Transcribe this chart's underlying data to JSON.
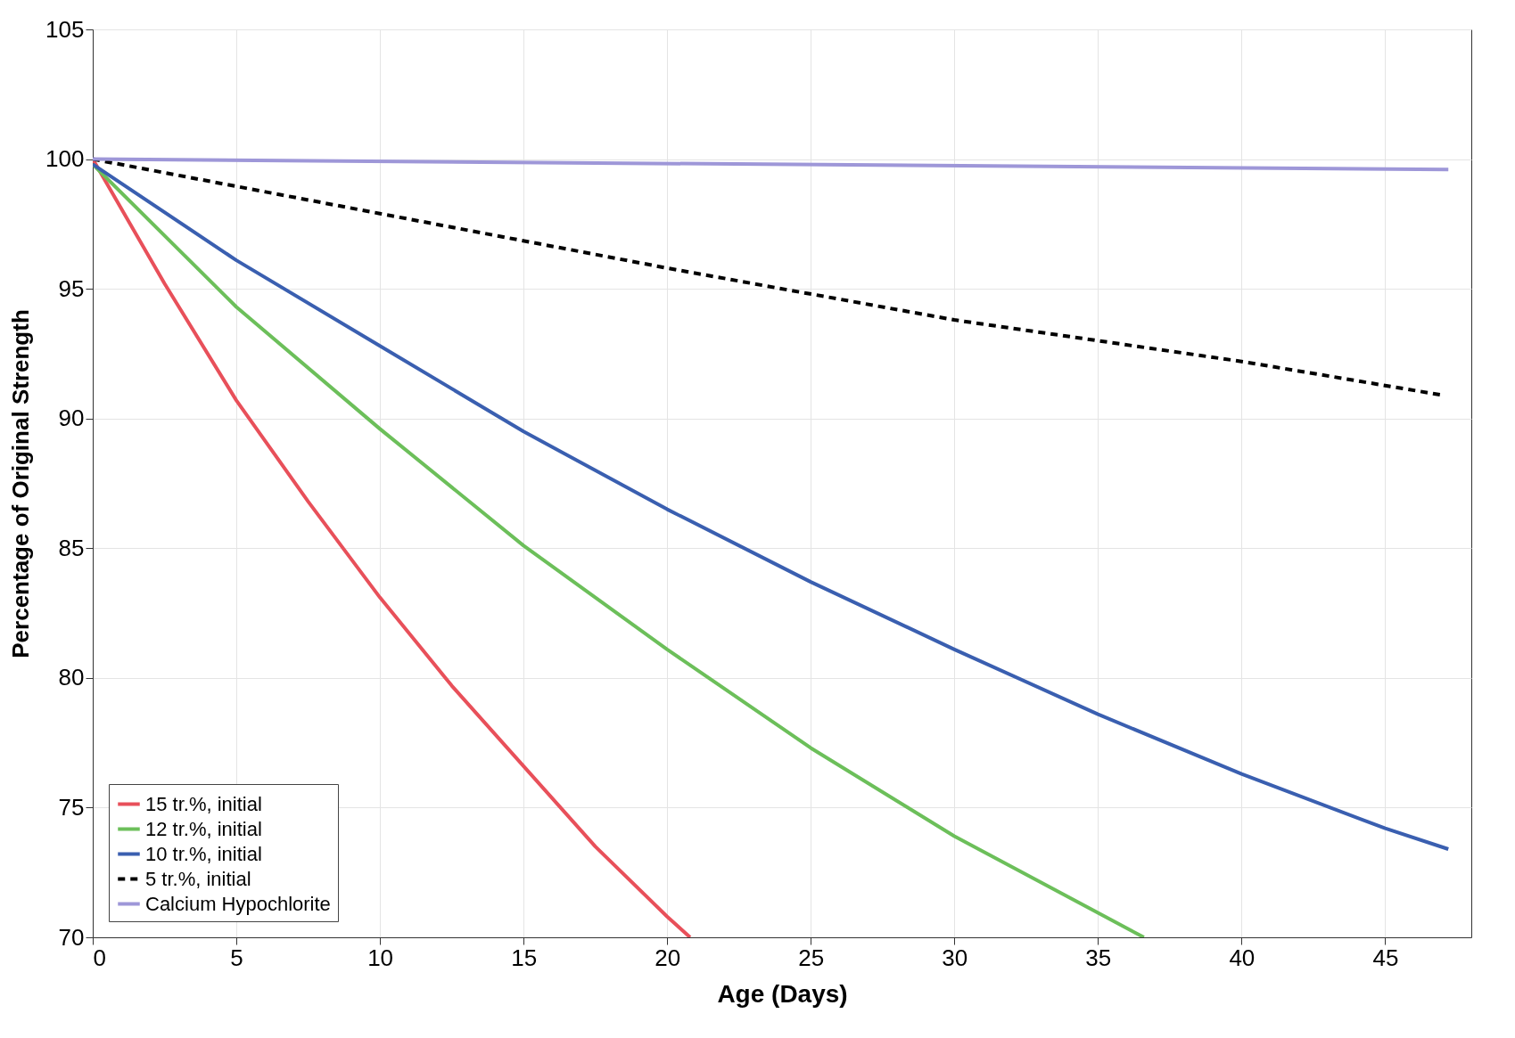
{
  "chart_data": {
    "type": "line",
    "xlabel": "Age (Days)",
    "ylabel": "Percentage of Original Strength",
    "xlim": [
      0,
      48
    ],
    "xticks": [
      0,
      5,
      10,
      15,
      20,
      25,
      30,
      35,
      40,
      45
    ],
    "ylim": [
      70,
      105
    ],
    "yticks": [
      70,
      75,
      80,
      85,
      90,
      95,
      100,
      105
    ],
    "grid": true,
    "legend": "bottom left",
    "marker": "none",
    "series": [
      {
        "name": "15 tr.%, initial",
        "color": "#e8505a",
        "line_style": "solid",
        "x": [
          0,
          2.5,
          5,
          7.5,
          10,
          12.5,
          15,
          17.5,
          20,
          20.8
        ],
        "values": [
          100,
          95.2,
          90.7,
          86.8,
          83.1,
          79.7,
          76.6,
          73.5,
          70.8,
          70
        ]
      },
      {
        "name": "12 tr.%, initial",
        "color": "#6cbf5a",
        "line_style": "solid",
        "x": [
          0,
          5,
          10,
          15,
          20,
          25,
          30,
          36.6
        ],
        "values": [
          99.8,
          94.3,
          89.6,
          85.1,
          81.1,
          77.3,
          73.9,
          70
        ]
      },
      {
        "name": "10 tr.%, initial",
        "color": "#3a5fb0",
        "line_style": "solid",
        "x": [
          0,
          5,
          10,
          15,
          20,
          25,
          30,
          35,
          40,
          45,
          47.2
        ],
        "values": [
          99.8,
          96.1,
          92.8,
          89.5,
          86.5,
          83.7,
          81.1,
          78.6,
          76.3,
          74.2,
          73.4
        ]
      },
      {
        "name": "5 tr.%, initial",
        "color": "#000000",
        "line_style": "dashed",
        "x": [
          0,
          10,
          20,
          30,
          40,
          47
        ],
        "values": [
          100,
          97.9,
          95.8,
          93.8,
          92.2,
          90.9
        ]
      },
      {
        "name": "Calcium Hypochlorite",
        "color": "#9e97d8",
        "line_style": "solid",
        "x": [
          0,
          47.2
        ],
        "values": [
          100,
          99.6
        ]
      }
    ]
  }
}
